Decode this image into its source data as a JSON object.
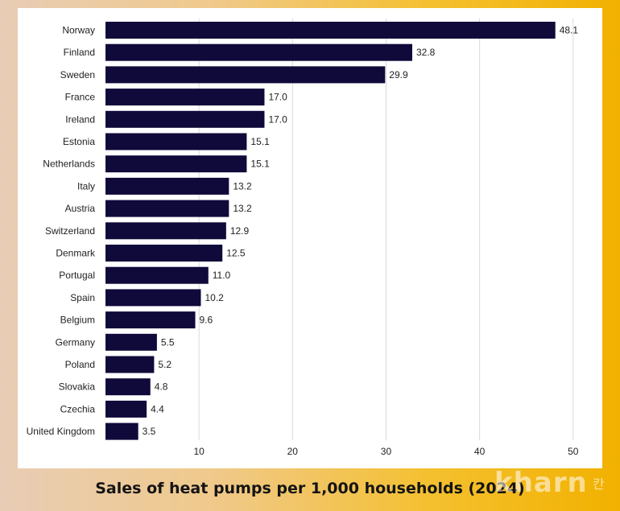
{
  "caption": "Sales of heat pumps per 1,000 households (2024)",
  "watermark": {
    "text": "kharn",
    "sub": "칸"
  },
  "colors": {
    "bar": "#0f0a3a",
    "grid": "#d9d9df",
    "label": "#222222"
  },
  "chart_data": {
    "type": "bar",
    "orientation": "horizontal",
    "title": "",
    "xlabel": "",
    "ylabel": "",
    "categories": [
      "Norway",
      "Finland",
      "Sweden",
      "France",
      "Ireland",
      "Estonia",
      "Netherlands",
      "Italy",
      "Austria",
      "Switzerland",
      "Denmark",
      "Portugal",
      "Spain",
      "Belgium",
      "Germany",
      "Poland",
      "Slovakia",
      "Czechia",
      "United Kingdom"
    ],
    "values": [
      48.1,
      32.8,
      29.9,
      17.0,
      17.0,
      15.1,
      15.1,
      13.2,
      13.2,
      12.9,
      12.5,
      11.0,
      10.2,
      9.6,
      5.5,
      5.2,
      4.8,
      4.4,
      3.5
    ],
    "value_labels": [
      "48.1",
      "32.8",
      "29.9",
      "17.0",
      "17.0",
      "15.1",
      "15.1",
      "13.2",
      "13.2",
      "12.9",
      "12.5",
      "11.0",
      "10.2",
      "9.6",
      "5.5",
      "5.2",
      "4.8",
      "4.4",
      "3.5"
    ],
    "xlim": [
      0,
      52
    ],
    "xticks": [
      10,
      20,
      30,
      40,
      50
    ],
    "grid": true,
    "legend": "none"
  }
}
